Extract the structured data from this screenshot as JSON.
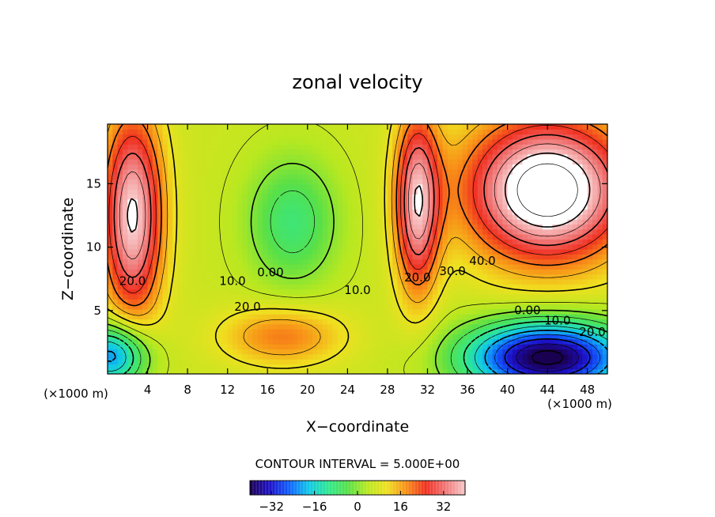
{
  "chart_data": {
    "type": "heatmap",
    "title": "zonal velocity",
    "xlabel": "X−coordinate",
    "ylabel": "Z−coordinate",
    "x_unit_label": "(×1000 m)",
    "y_unit_label": "(×1000 m)",
    "xlim": [
      0,
      50
    ],
    "ylim": [
      0,
      19.7
    ],
    "x_ticks": [
      4,
      8,
      12,
      16,
      20,
      24,
      28,
      32,
      36,
      40,
      44,
      48
    ],
    "y_ticks": [
      5,
      10,
      15
    ],
    "contour_interval_text": "CONTOUR INTERVAL = 5.000E+00",
    "colorbar": {
      "range": [
        -40,
        40
      ],
      "ticks": [
        -32,
        -16,
        0,
        16,
        32
      ],
      "colors": [
        "#1a0050",
        "#1d10c8",
        "#1060ff",
        "#10c8e8",
        "#30e890",
        "#58e048",
        "#b8e820",
        "#f0e020",
        "#f89018",
        "#f03020",
        "#f07878",
        "#f8c8c8"
      ]
    },
    "contour_labels": [
      {
        "text": "20.0",
        "x": 2.5,
        "y": 7.0
      },
      {
        "text": "10.0",
        "x": 12.5,
        "y": 7.0
      },
      {
        "text": "0.00",
        "x": 16.3,
        "y": 7.7
      },
      {
        "text": "20.0",
        "x": 14.0,
        "y": 5.0
      },
      {
        "text": "10.0",
        "x": 25.0,
        "y": 6.3
      },
      {
        "text": "20.0",
        "x": 31.0,
        "y": 7.3
      },
      {
        "text": "30.0",
        "x": 34.5,
        "y": 7.8
      },
      {
        "text": "40.0",
        "x": 37.5,
        "y": 8.6
      },
      {
        "text": "0.00",
        "x": 42.0,
        "y": 4.7
      },
      {
        "text": "10.0",
        "x": 45.0,
        "y": 3.9
      },
      {
        "text": "20.0",
        "x": 48.5,
        "y": 3.0
      }
    ],
    "field_regions": [
      {
        "name": "left jet (positive)",
        "x": 2.5,
        "y": 12.5,
        "sx": 3.0,
        "sy": 8.0,
        "amplitude": 35
      },
      {
        "name": "right jet (positive)",
        "x": 31.0,
        "y": 13.5,
        "sx": 2.2,
        "sy": 7.0,
        "amplitude": 32
      },
      {
        "name": "upper-right maximum",
        "x": 44.0,
        "y": 14.5,
        "sx": 8.0,
        "sy": 5.5,
        "amplitude": 45
      },
      {
        "name": "lower-middle maximum",
        "x": 17.5,
        "y": 3.0,
        "sx": 6.0,
        "sy": 2.3,
        "amplitude": 14
      },
      {
        "name": "central minimum",
        "x": 18.5,
        "y": 12.0,
        "sx": 4.5,
        "sy": 5.0,
        "amplitude": -14
      },
      {
        "name": "lower-left minimum",
        "x": 0.5,
        "y": 1.5,
        "sx": 3.5,
        "sy": 2.5,
        "amplitude": -30
      },
      {
        "name": "lower-right minimum",
        "x": 44.0,
        "y": 1.3,
        "sx": 8.0,
        "sy": 2.8,
        "amplitude": -48
      }
    ],
    "field_background": 6,
    "legend": "bottom"
  }
}
